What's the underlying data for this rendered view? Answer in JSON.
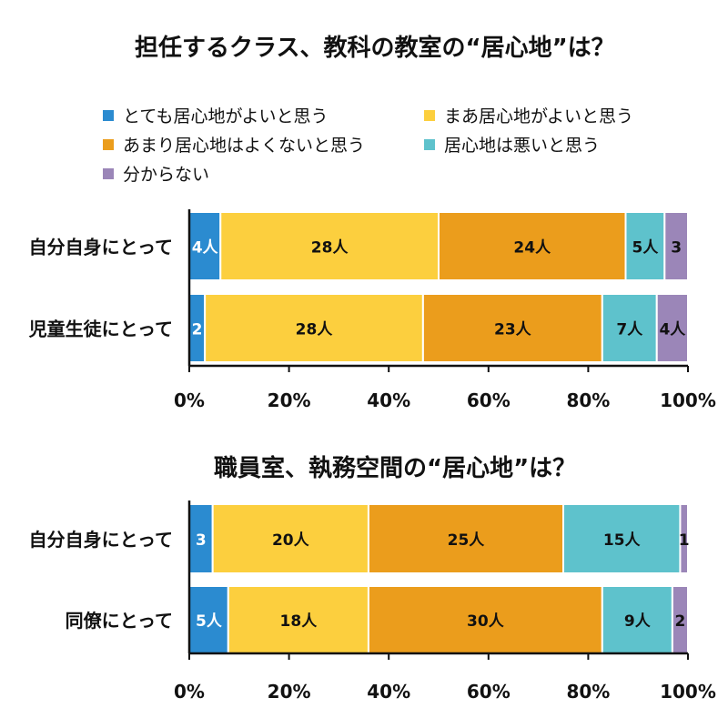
{
  "legend": [
    {
      "label": "とても居心地がよいと思う",
      "color": "#2b8bd0"
    },
    {
      "label": "まあ居心地がよいと思う",
      "color": "#fccf3e"
    },
    {
      "label": "あまり居心地はよくないと思う",
      "color": "#eb9d1c"
    },
    {
      "label": "居心地は悪いと思う",
      "color": "#5ec2cc"
    },
    {
      "label": "分からない",
      "color": "#9b86b8"
    }
  ],
  "chart_data": [
    {
      "type": "bar",
      "orientation": "horizontal",
      "stacked": "percent",
      "title": "担任するクラス、教科の教室の“居心地”は？",
      "categories": [
        "自分自身にとって",
        "児童生徒にとって"
      ],
      "series": [
        {
          "name": "とても居心地がよいと思う",
          "values": [
            4,
            2
          ],
          "labels": [
            "4人",
            "2"
          ]
        },
        {
          "name": "まあ居心地がよいと思う",
          "values": [
            28,
            28
          ],
          "labels": [
            "28人",
            "28人"
          ]
        },
        {
          "name": "あまり居心地はよくないと思う",
          "values": [
            24,
            23
          ],
          "labels": [
            "24人",
            "23人"
          ]
        },
        {
          "name": "居心地は悪いと思う",
          "values": [
            5,
            7
          ],
          "labels": [
            "5人",
            "7人"
          ]
        },
        {
          "name": "分からない",
          "values": [
            3,
            4
          ],
          "labels": [
            "3",
            "4人"
          ]
        }
      ],
      "xticks": [
        "0%",
        "20%",
        "40%",
        "60%",
        "80%",
        "100%"
      ],
      "xlim": [
        0,
        100
      ]
    },
    {
      "type": "bar",
      "orientation": "horizontal",
      "stacked": "percent",
      "title": "職員室、執務空間の“居心地”は？",
      "categories": [
        "自分自身にとって",
        "同僚にとって"
      ],
      "series": [
        {
          "name": "とても居心地がよいと思う",
          "values": [
            3,
            5
          ],
          "labels": [
            "3",
            "5人"
          ]
        },
        {
          "name": "まあ居心地がよいと思う",
          "values": [
            20,
            18
          ],
          "labels": [
            "20人",
            "18人"
          ]
        },
        {
          "name": "あまり居心地はよくないと思う",
          "values": [
            25,
            30
          ],
          "labels": [
            "25人",
            "30人"
          ]
        },
        {
          "name": "居心地は悪いと思う",
          "values": [
            15,
            9
          ],
          "labels": [
            "15人",
            "9人"
          ]
        },
        {
          "name": "分からない",
          "values": [
            1,
            2
          ],
          "labels": [
            "1",
            "2"
          ]
        }
      ],
      "xticks": [
        "0%",
        "20%",
        "40%",
        "60%",
        "80%",
        "100%"
      ],
      "xlim": [
        0,
        100
      ]
    }
  ]
}
